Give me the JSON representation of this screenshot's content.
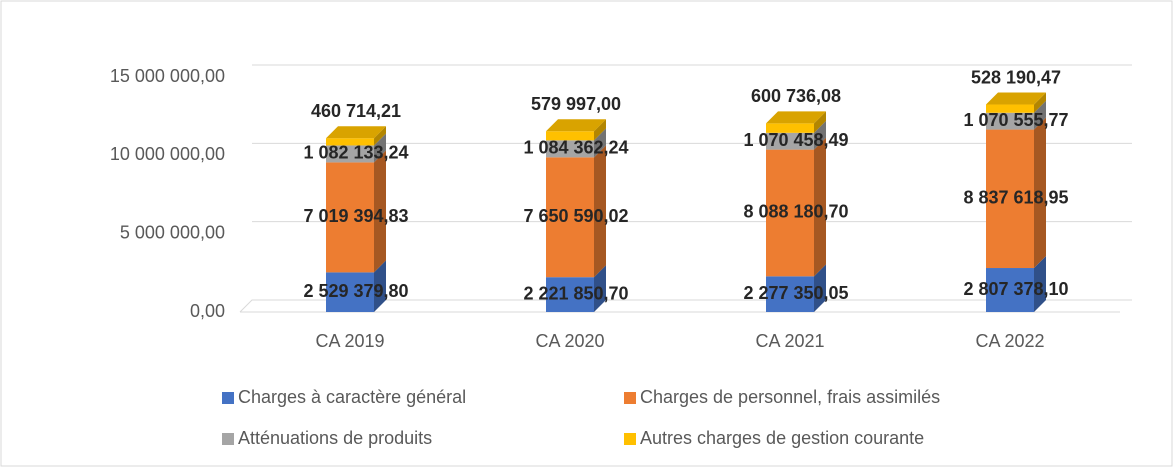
{
  "chart_data": {
    "type": "bar3d_stacked",
    "categories": [
      "CA 2019",
      "CA 2020",
      "CA 2021",
      "CA 2022"
    ],
    "series": [
      {
        "name": "Charges à caractère général",
        "color": "#4472c4",
        "values": [
          2529379.8,
          2221850.7,
          2277350.05,
          2807378.1
        ],
        "value_labels": [
          "2 529 379,80",
          "2 221 850,70",
          "2 277 350,05",
          "2 807 378,10"
        ]
      },
      {
        "name": "Charges de personnel, frais assimilés",
        "color": "#ed7d31",
        "values": [
          7019394.83,
          7650590.02,
          8088180.7,
          8837618.95
        ],
        "value_labels": [
          "7 019 394,83",
          "7 650 590,02",
          "8 088 180,70",
          "8 837 618,95"
        ]
      },
      {
        "name": "Atténuations de produits",
        "color": "#a5a5a5",
        "values": [
          1082133.24,
          1084362.24,
          1070458.49,
          1070555.77
        ],
        "value_labels": [
          "1 082 133,24",
          "1 084 362,24",
          "1 070 458,49",
          "1 070 555,77"
        ]
      },
      {
        "name": "Autres charges de gestion courante",
        "color": "#ffc000",
        "values": [
          460714.21,
          579997.0,
          600736.08,
          528190.47
        ],
        "value_labels": [
          "460 714,21",
          "579 997,00",
          "600 736,08",
          "528 190,47"
        ]
      }
    ],
    "ylim": [
      0,
      15000000
    ],
    "yticks": [
      {
        "value": 0,
        "label": "0,00"
      },
      {
        "value": 5000000,
        "label": "5 000 000,00"
      },
      {
        "value": 10000000,
        "label": "10 000 000,00"
      },
      {
        "value": 15000000,
        "label": "15 000 000,00"
      }
    ],
    "grid": true,
    "legend": "bottom"
  }
}
